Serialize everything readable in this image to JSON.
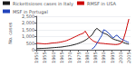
{
  "chart_data": {
    "type": "line",
    "ylabel": "No. cases",
    "xlim": [
      1950,
      2006
    ],
    "xticks": [
      1950,
      1955,
      1960,
      1965,
      1970,
      1975,
      1980,
      1985,
      1990,
      1995,
      2000,
      2005
    ],
    "ylim": [
      0,
      2500
    ],
    "yticks": [
      0,
      500,
      {
        "value": 1000,
        "label": "1,000"
      },
      {
        "value": 1500,
        "label": "1,500"
      },
      {
        "value": 2000,
        "label": "2,000"
      },
      {
        "value": 2500,
        "label": "2,500"
      }
    ],
    "grid": true,
    "legend": "top",
    "series": [
      {
        "name": "Rickettsioses cases in Italy",
        "color": "#1a1a1a",
        "x": [
          1950,
          1951,
          1952,
          1953,
          1954,
          1955,
          1956,
          1957,
          1958,
          1959,
          1960,
          1961,
          1962,
          1963,
          1964,
          1965,
          1966,
          1967,
          1968,
          1969,
          1970,
          1971,
          1972,
          1973,
          1974,
          1975,
          1976,
          1977,
          1978,
          1979,
          1980,
          1981,
          1982,
          1983,
          1984,
          1985,
          1986,
          1987,
          1988,
          1989,
          1990,
          1991,
          1992,
          1993,
          1994,
          1995,
          1996,
          1997,
          1998,
          1999,
          2000,
          2001,
          2002,
          2003,
          2004,
          2005
        ],
        "values": [
          100,
          105,
          110,
          115,
          120,
          125,
          130,
          140,
          150,
          160,
          170,
          180,
          190,
          200,
          210,
          220,
          240,
          260,
          280,
          300,
          320,
          350,
          380,
          410,
          450,
          490,
          540,
          590,
          650,
          720,
          800,
          900,
          1000,
          1100,
          1300,
          1500,
          1600,
          1500,
          1400,
          1300,
          1250,
          1200,
          1150,
          1050,
          950,
          850,
          800,
          750,
          720,
          680,
          640,
          590,
          540,
          500,
          460,
          430
        ]
      },
      {
        "name": "RMSF in USA",
        "color": "#cc0000",
        "x": [
          1950,
          1951,
          1952,
          1953,
          1954,
          1955,
          1956,
          1957,
          1958,
          1959,
          1960,
          1961,
          1962,
          1963,
          1964,
          1965,
          1966,
          1967,
          1968,
          1969,
          1970,
          1971,
          1972,
          1973,
          1974,
          1975,
          1976,
          1977,
          1978,
          1979,
          1980,
          1981,
          1982,
          1983,
          1984,
          1985,
          1986,
          1987,
          1988,
          1989,
          1990,
          1991,
          1992,
          1993,
          1994,
          1995,
          1996,
          1997,
          1998,
          1999,
          2000,
          2001,
          2002,
          2003,
          2004,
          2005
        ],
        "values": [
          500,
          490,
          480,
          470,
          460,
          450,
          460,
          470,
          490,
          510,
          520,
          530,
          540,
          560,
          580,
          600,
          630,
          660,
          700,
          750,
          800,
          860,
          920,
          980,
          1040,
          1100,
          1150,
          1200,
          1250,
          1400,
          1200,
          1000,
          850,
          750,
          650,
          600,
          550,
          520,
          500,
          490,
          480,
          460,
          450,
          440,
          430,
          420,
          410,
          400,
          410,
          430,
          480,
          600,
          900,
          1300,
          1800,
          2300
        ]
      },
      {
        "name": "MSF in Portugal",
        "color": "#2244bb",
        "x": [
          1983,
          1984,
          1985,
          1986,
          1987,
          1988,
          1989,
          1990,
          1991,
          1992,
          1993,
          1994,
          1995,
          1996,
          1997,
          1998,
          1999,
          2000,
          2001,
          2002,
          2003,
          2004,
          2005
        ],
        "values": [
          80,
          150,
          300,
          500,
          700,
          900,
          1100,
          1500,
          1450,
          1350,
          1250,
          1100,
          950,
          900,
          1050,
          1100,
          950,
          850,
          780,
          720,
          660,
          600,
          550
        ]
      }
    ]
  }
}
